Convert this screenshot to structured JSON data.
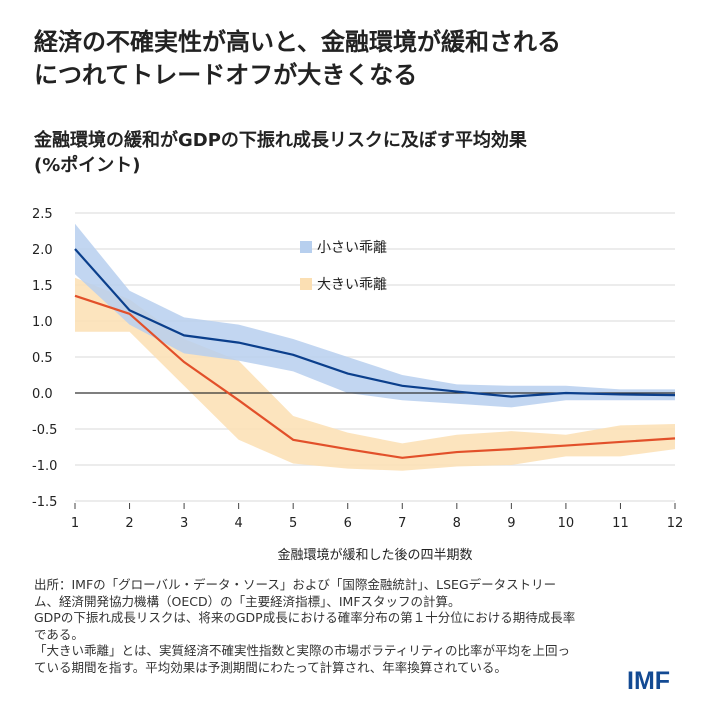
{
  "title": "経済の不確実性が高いと、金融環境が緩和される\nにつれてトレードオフが大きくなる",
  "chart_data": {
    "type": "line",
    "title": "金融環境の緩和がGDPの下振れ成長リスクに及ぼす平均効果\n(%ポイント)",
    "xlabel": "金融環境が緩和した後の四半期数",
    "ylabel": "",
    "x": [
      1,
      2,
      3,
      4,
      5,
      6,
      7,
      8,
      9,
      10,
      11,
      12
    ],
    "ylim": [
      -1.5,
      2.5
    ],
    "yticks": [
      "2.5",
      "2.0",
      "1.5",
      "1.0",
      "0.5",
      "0.0",
      "-0.5",
      "-1.0",
      "-1.5"
    ],
    "grid": true,
    "legend_position": "top-center",
    "series": [
      {
        "name": "小さい乖離",
        "color": "#0b3f8c",
        "band_color": "#b7cfee",
        "values": [
          2.0,
          1.15,
          0.8,
          0.7,
          0.53,
          0.27,
          0.1,
          0.02,
          -0.05,
          0.0,
          -0.02,
          -0.03
        ],
        "upper": [
          2.35,
          1.42,
          1.05,
          0.95,
          0.75,
          0.5,
          0.25,
          0.12,
          0.1,
          0.1,
          0.05,
          0.05
        ],
        "lower": [
          1.65,
          0.95,
          0.55,
          0.45,
          0.3,
          0.0,
          -0.1,
          -0.15,
          -0.2,
          -0.1,
          -0.1,
          -0.1
        ]
      },
      {
        "name": "大きい乖離",
        "color": "#e2502a",
        "band_color": "#fbdfb3",
        "values": [
          1.35,
          1.1,
          0.43,
          -0.1,
          -0.65,
          -0.78,
          -0.9,
          -0.82,
          -0.78,
          -0.73,
          -0.68,
          -0.63
        ],
        "upper": [
          1.6,
          1.3,
          0.75,
          0.45,
          -0.32,
          -0.55,
          -0.7,
          -0.58,
          -0.53,
          -0.58,
          -0.45,
          -0.43
        ],
        "lower": [
          0.85,
          0.85,
          0.1,
          -0.65,
          -0.98,
          -1.05,
          -1.08,
          -1.02,
          -1.0,
          -0.88,
          -0.88,
          -0.78
        ]
      }
    ]
  },
  "footnote": "出所：IMFの「グローバル・データ・ソース」および「国際金融統計」、LSEGデータストリーム、経済開発協力機構（OECD）の「主要経済指標」、IMFスタッフの計算。\nGDPの下振れ成長リスクは、将来のGDP成長における確率分布の第１十分位における期待成長率である。\n「大きい乖離」とは、実質経済不確実性指数と実際の市場ボラティリティの比率が平均を上回っている期間を指す。平均効果は予測期間にわたって計算され、年率換算されている。",
  "logo": "IMF"
}
